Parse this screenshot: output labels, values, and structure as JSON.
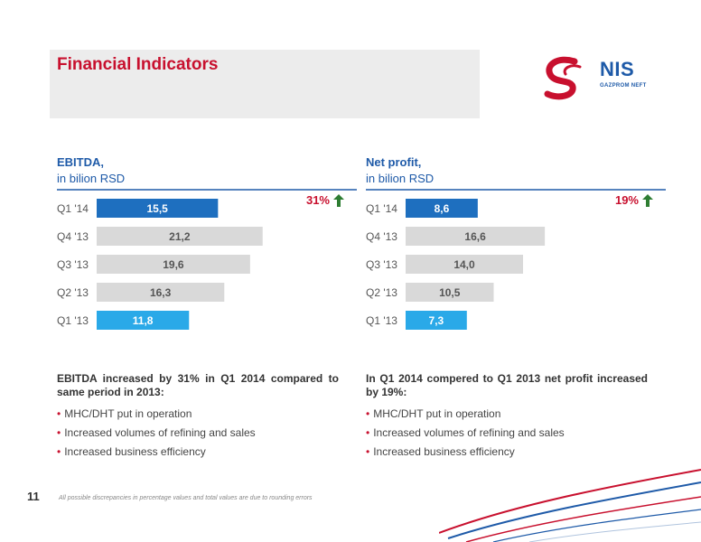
{
  "header": {
    "title": "Financial Indicators",
    "logo_text": "NIS",
    "logo_subtext": "GAZPROM NEFT"
  },
  "colors": {
    "accent_red": "#c8102e",
    "brand_blue": "#1e5aa8",
    "bar_highlight": "#1e6fbf",
    "bar_light": "#2aa9e8",
    "bar_gray": "#d9d9d9"
  },
  "left_panel": {
    "title": "EBITDA,",
    "subtitle": "in bilion RSD",
    "change": "31%",
    "change_icon": "arrow-up-icon",
    "description": "EBITDA increased by 31% in Q1 2014 compared to same period in 2013:",
    "bullets": [
      "MHC/DHT put in operation",
      "Increased volumes of refining and sales",
      "Increased business efficiency"
    ]
  },
  "right_panel": {
    "title": "Net profit,",
    "subtitle": "in bilion RSD",
    "change": "19%",
    "change_icon": "arrow-up-icon",
    "description": "In Q1 2014 compered to Q1 2013 net profit increased by 19%:",
    "bullets": [
      "MHC/DHT put in operation",
      "Increased volumes of refining and sales",
      "Increased business efficiency"
    ]
  },
  "chart_data": [
    {
      "type": "bar",
      "orientation": "horizontal",
      "title": "EBITDA,",
      "categories": [
        "Q1 '14",
        "Q4 '13",
        "Q3 '13",
        "Q2 '13",
        "Q1 '13"
      ],
      "values": [
        15.5,
        21.2,
        19.6,
        16.3,
        11.8
      ],
      "value_labels": [
        "15,5",
        "21,2",
        "19,6",
        "16,3",
        "11,8"
      ],
      "bar_colors": [
        "#1e6fbf",
        "#d9d9d9",
        "#d9d9d9",
        "#d9d9d9",
        "#2aa9e8"
      ],
      "xlim": [
        0,
        30
      ]
    },
    {
      "type": "bar",
      "orientation": "horizontal",
      "title": "Net profit,",
      "categories": [
        "Q1 '14",
        "Q4 '13",
        "Q3 '13",
        "Q2 '13",
        "Q1 '13"
      ],
      "values": [
        8.6,
        16.6,
        14.0,
        10.5,
        7.3
      ],
      "value_labels": [
        "8,6",
        "16,6",
        "14,0",
        "10,5",
        "7,3"
      ],
      "bar_colors": [
        "#1e6fbf",
        "#d9d9d9",
        "#d9d9d9",
        "#d9d9d9",
        "#2aa9e8"
      ],
      "xlim": [
        0,
        28
      ]
    }
  ],
  "footer": {
    "page_number": "11",
    "footnote": "All possible discrepancies in percentage values and total values are due to rounding errors"
  }
}
